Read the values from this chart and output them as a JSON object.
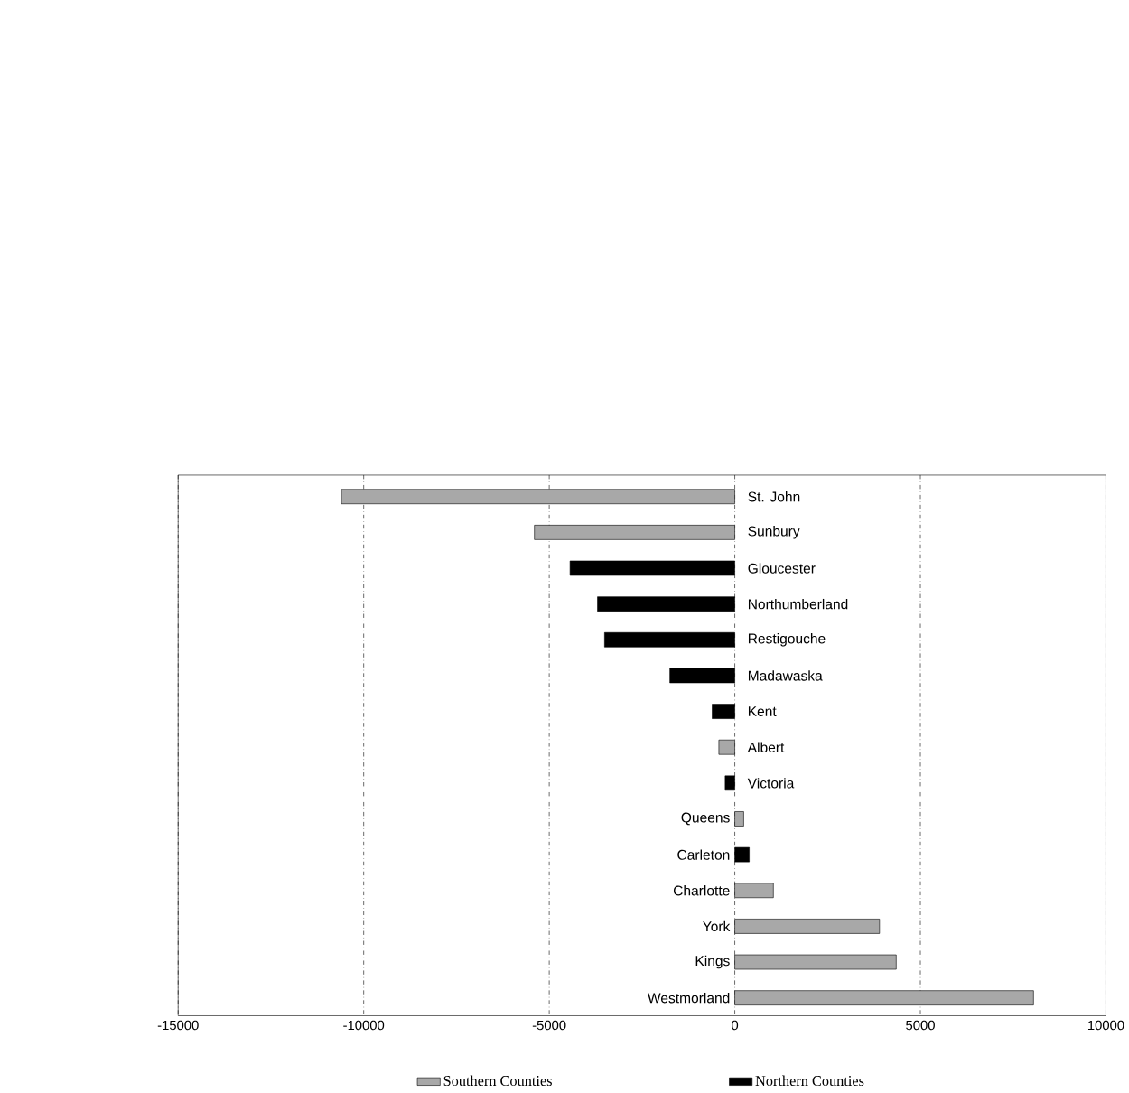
{
  "chart_data": {
    "type": "bar",
    "orientation": "horizontal",
    "categories": [
      "St. John",
      "Sunbury",
      "Gloucester",
      "Northumberland",
      "Restigouche",
      "Madawaska",
      "Kent",
      "Albert",
      "Victoria",
      "Queens",
      "Carleton",
      "Charlotte",
      "York",
      "Kings",
      "Westmorland"
    ],
    "series": [
      {
        "name": "Southern Counties",
        "color": "#a8a8a8",
        "values": [
          -10600,
          -5400,
          null,
          null,
          null,
          null,
          null,
          -430,
          null,
          240,
          null,
          1040,
          3900,
          4350,
          8050
        ]
      },
      {
        "name": "Northern Counties",
        "color": "#000000",
        "values": [
          null,
          null,
          -4440,
          -3700,
          -3510,
          -1750,
          -610,
          null,
          -260,
          null,
          390,
          null,
          null,
          null,
          null
        ]
      }
    ],
    "xlim": [
      -15000,
      10000
    ],
    "xticks": [
      -15000,
      -10000,
      -5000,
      0,
      5000,
      10000
    ],
    "grid": "x",
    "legend": "bottom"
  }
}
